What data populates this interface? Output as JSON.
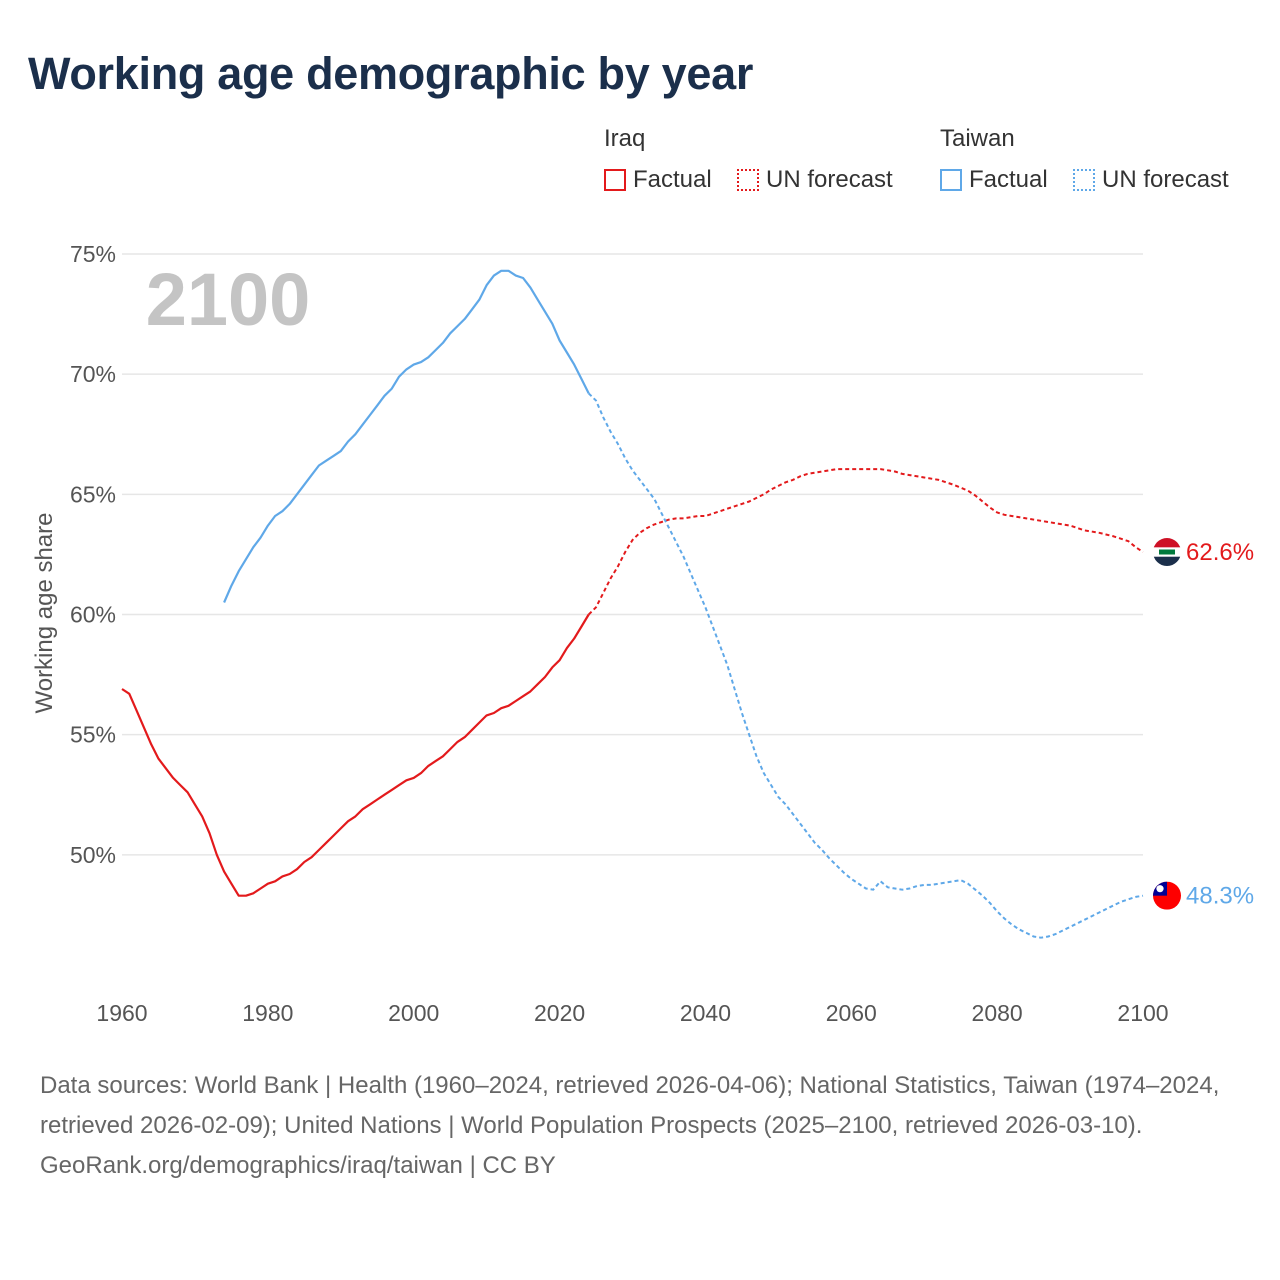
{
  "title": "Working age demographic by year",
  "legend": {
    "groups": [
      {
        "name": "Iraq",
        "factual": "Factual",
        "forecast": "UN forecast"
      },
      {
        "name": "Taiwan",
        "factual": "Factual",
        "forecast": "UN forecast"
      }
    ]
  },
  "footer": {
    "sources": "Data sources: World Bank | Health (1960–2024, retrieved 2026-04-06); National Statistics, Taiwan (1974–2024, retrieved 2026-02-09); United Nations | World Population Prospects (2025–2100, retrieved 2026-03-10).",
    "credit": "GeoRank.org/demographics/iraq/taiwan | CC BY"
  },
  "colors": {
    "iraq": "#e31a1c",
    "taiwan": "#5fa8e8",
    "title": "#1b2f4b",
    "grid": "#e6e6e6",
    "watermark": "#c4c4c4"
  },
  "chart_data": {
    "type": "line",
    "title": "Working age demographic by year",
    "xlabel": "",
    "ylabel": "Working age share",
    "year_watermark": "2100",
    "xlim": [
      1960,
      2100
    ],
    "ylim": [
      44.5,
      75
    ],
    "xticks": [
      {
        "value": 1960,
        "label": "1960"
      },
      {
        "value": 1980,
        "label": "1980"
      },
      {
        "value": 2000,
        "label": "2000"
      },
      {
        "value": 2020,
        "label": "2020"
      },
      {
        "value": 2040,
        "label": "2040"
      },
      {
        "value": 2060,
        "label": "2060"
      },
      {
        "value": 2080,
        "label": "2080"
      },
      {
        "value": 2100,
        "label": "2100"
      }
    ],
    "yticks": [
      {
        "value": 50,
        "label": "50%"
      },
      {
        "value": 55,
        "label": "55%"
      },
      {
        "value": 60,
        "label": "60%"
      },
      {
        "value": 65,
        "label": "65%"
      },
      {
        "value": 70,
        "label": "70%"
      },
      {
        "value": 75,
        "label": "75%"
      }
    ],
    "series": [
      {
        "name": "Iraq",
        "color_key": "iraq",
        "end_label": "62.6%",
        "end_value": 62.6,
        "factual": [
          [
            1960,
            56.9
          ],
          [
            1961,
            56.7
          ],
          [
            1962,
            56.0
          ],
          [
            1963,
            55.3
          ],
          [
            1964,
            54.6
          ],
          [
            1965,
            54.0
          ],
          [
            1966,
            53.6
          ],
          [
            1967,
            53.2
          ],
          [
            1968,
            52.9
          ],
          [
            1969,
            52.6
          ],
          [
            1970,
            52.1
          ],
          [
            1971,
            51.6
          ],
          [
            1972,
            50.9
          ],
          [
            1973,
            50.0
          ],
          [
            1974,
            49.3
          ],
          [
            1975,
            48.8
          ],
          [
            1976,
            48.3
          ],
          [
            1977,
            48.3
          ],
          [
            1978,
            48.4
          ],
          [
            1979,
            48.6
          ],
          [
            1980,
            48.8
          ],
          [
            1981,
            48.9
          ],
          [
            1982,
            49.1
          ],
          [
            1983,
            49.2
          ],
          [
            1984,
            49.4
          ],
          [
            1985,
            49.7
          ],
          [
            1986,
            49.9
          ],
          [
            1987,
            50.2
          ],
          [
            1988,
            50.5
          ],
          [
            1989,
            50.8
          ],
          [
            1990,
            51.1
          ],
          [
            1991,
            51.4
          ],
          [
            1992,
            51.6
          ],
          [
            1993,
            51.9
          ],
          [
            1994,
            52.1
          ],
          [
            1995,
            52.3
          ],
          [
            1996,
            52.5
          ],
          [
            1997,
            52.7
          ],
          [
            1998,
            52.9
          ],
          [
            1999,
            53.1
          ],
          [
            2000,
            53.2
          ],
          [
            2001,
            53.4
          ],
          [
            2002,
            53.7
          ],
          [
            2003,
            53.9
          ],
          [
            2004,
            54.1
          ],
          [
            2005,
            54.4
          ],
          [
            2006,
            54.7
          ],
          [
            2007,
            54.9
          ],
          [
            2008,
            55.2
          ],
          [
            2009,
            55.5
          ],
          [
            2010,
            55.8
          ],
          [
            2011,
            55.9
          ],
          [
            2012,
            56.1
          ],
          [
            2013,
            56.2
          ],
          [
            2014,
            56.4
          ],
          [
            2015,
            56.6
          ],
          [
            2016,
            56.8
          ],
          [
            2017,
            57.1
          ],
          [
            2018,
            57.4
          ],
          [
            2019,
            57.8
          ],
          [
            2020,
            58.1
          ],
          [
            2021,
            58.6
          ],
          [
            2022,
            59.0
          ],
          [
            2023,
            59.5
          ],
          [
            2024,
            60.0
          ]
        ],
        "forecast": [
          [
            2024,
            60.0
          ],
          [
            2025,
            60.3
          ],
          [
            2026,
            60.9
          ],
          [
            2027,
            61.5
          ],
          [
            2028,
            62.0
          ],
          [
            2029,
            62.6
          ],
          [
            2030,
            63.1
          ],
          [
            2031,
            63.4
          ],
          [
            2032,
            63.6
          ],
          [
            2033,
            63.75
          ],
          [
            2034,
            63.85
          ],
          [
            2035,
            63.95
          ],
          [
            2036,
            64.0
          ],
          [
            2037,
            64.0
          ],
          [
            2038,
            64.05
          ],
          [
            2039,
            64.1
          ],
          [
            2040,
            64.1
          ],
          [
            2041,
            64.2
          ],
          [
            2042,
            64.3
          ],
          [
            2043,
            64.4
          ],
          [
            2044,
            64.5
          ],
          [
            2045,
            64.6
          ],
          [
            2046,
            64.7
          ],
          [
            2047,
            64.85
          ],
          [
            2048,
            65.0
          ],
          [
            2049,
            65.2
          ],
          [
            2050,
            65.35
          ],
          [
            2051,
            65.5
          ],
          [
            2052,
            65.6
          ],
          [
            2053,
            65.75
          ],
          [
            2054,
            65.85
          ],
          [
            2055,
            65.9
          ],
          [
            2056,
            65.95
          ],
          [
            2057,
            66.0
          ],
          [
            2058,
            66.05
          ],
          [
            2059,
            66.05
          ],
          [
            2060,
            66.05
          ],
          [
            2062,
            66.05
          ],
          [
            2064,
            66.05
          ],
          [
            2065,
            66.0
          ],
          [
            2066,
            65.95
          ],
          [
            2067,
            65.85
          ],
          [
            2068,
            65.8
          ],
          [
            2070,
            65.7
          ],
          [
            2072,
            65.6
          ],
          [
            2074,
            65.4
          ],
          [
            2076,
            65.15
          ],
          [
            2077,
            64.95
          ],
          [
            2078,
            64.7
          ],
          [
            2079,
            64.45
          ],
          [
            2080,
            64.25
          ],
          [
            2081,
            64.15
          ],
          [
            2082,
            64.1
          ],
          [
            2084,
            64.0
          ],
          [
            2086,
            63.9
          ],
          [
            2088,
            63.8
          ],
          [
            2090,
            63.7
          ],
          [
            2092,
            63.5
          ],
          [
            2094,
            63.4
          ],
          [
            2096,
            63.25
          ],
          [
            2098,
            63.05
          ],
          [
            2099,
            62.8
          ],
          [
            2100,
            62.6
          ]
        ]
      },
      {
        "name": "Taiwan",
        "color_key": "taiwan",
        "end_label": "48.3%",
        "end_value": 48.3,
        "factual": [
          [
            1974,
            60.5
          ],
          [
            1975,
            61.2
          ],
          [
            1976,
            61.8
          ],
          [
            1977,
            62.3
          ],
          [
            1978,
            62.8
          ],
          [
            1979,
            63.2
          ],
          [
            1980,
            63.7
          ],
          [
            1981,
            64.1
          ],
          [
            1982,
            64.3
          ],
          [
            1983,
            64.6
          ],
          [
            1984,
            65.0
          ],
          [
            1985,
            65.4
          ],
          [
            1986,
            65.8
          ],
          [
            1987,
            66.2
          ],
          [
            1988,
            66.4
          ],
          [
            1989,
            66.6
          ],
          [
            1990,
            66.8
          ],
          [
            1991,
            67.2
          ],
          [
            1992,
            67.5
          ],
          [
            1993,
            67.9
          ],
          [
            1994,
            68.3
          ],
          [
            1995,
            68.7
          ],
          [
            1996,
            69.1
          ],
          [
            1997,
            69.4
          ],
          [
            1998,
            69.9
          ],
          [
            1999,
            70.2
          ],
          [
            2000,
            70.4
          ],
          [
            2001,
            70.5
          ],
          [
            2002,
            70.7
          ],
          [
            2003,
            71.0
          ],
          [
            2004,
            71.3
          ],
          [
            2005,
            71.7
          ],
          [
            2006,
            72.0
          ],
          [
            2007,
            72.3
          ],
          [
            2008,
            72.7
          ],
          [
            2009,
            73.1
          ],
          [
            2010,
            73.7
          ],
          [
            2011,
            74.1
          ],
          [
            2012,
            74.3
          ],
          [
            2013,
            74.3
          ],
          [
            2014,
            74.1
          ],
          [
            2015,
            74.0
          ],
          [
            2016,
            73.6
          ],
          [
            2017,
            73.1
          ],
          [
            2018,
            72.6
          ],
          [
            2019,
            72.1
          ],
          [
            2020,
            71.4
          ],
          [
            2021,
            70.9
          ],
          [
            2022,
            70.4
          ],
          [
            2023,
            69.8
          ],
          [
            2024,
            69.2
          ]
        ],
        "forecast": [
          [
            2024,
            69.2
          ],
          [
            2025,
            68.9
          ],
          [
            2026,
            68.2
          ],
          [
            2027,
            67.6
          ],
          [
            2028,
            67.1
          ],
          [
            2029,
            66.5
          ],
          [
            2030,
            66.0
          ],
          [
            2031,
            65.6
          ],
          [
            2032,
            65.2
          ],
          [
            2033,
            64.8
          ],
          [
            2034,
            64.2
          ],
          [
            2035,
            63.6
          ],
          [
            2036,
            63.0
          ],
          [
            2037,
            62.4
          ],
          [
            2038,
            61.7
          ],
          [
            2039,
            61.0
          ],
          [
            2040,
            60.3
          ],
          [
            2041,
            59.5
          ],
          [
            2042,
            58.7
          ],
          [
            2043,
            57.9
          ],
          [
            2044,
            56.9
          ],
          [
            2045,
            55.9
          ],
          [
            2046,
            55.0
          ],
          [
            2047,
            54.1
          ],
          [
            2048,
            53.4
          ],
          [
            2049,
            52.9
          ],
          [
            2050,
            52.4
          ],
          [
            2051,
            52.1
          ],
          [
            2052,
            51.7
          ],
          [
            2053,
            51.3
          ],
          [
            2054,
            50.9
          ],
          [
            2055,
            50.5
          ],
          [
            2056,
            50.2
          ],
          [
            2057,
            49.85
          ],
          [
            2058,
            49.55
          ],
          [
            2059,
            49.25
          ],
          [
            2060,
            49.0
          ],
          [
            2061,
            48.8
          ],
          [
            2062,
            48.6
          ],
          [
            2063,
            48.55
          ],
          [
            2064,
            48.9
          ],
          [
            2065,
            48.65
          ],
          [
            2066,
            48.6
          ],
          [
            2067,
            48.55
          ],
          [
            2068,
            48.6
          ],
          [
            2069,
            48.7
          ],
          [
            2070,
            48.75
          ],
          [
            2071,
            48.75
          ],
          [
            2072,
            48.8
          ],
          [
            2073,
            48.85
          ],
          [
            2074,
            48.9
          ],
          [
            2075,
            48.95
          ],
          [
            2076,
            48.8
          ],
          [
            2077,
            48.55
          ],
          [
            2078,
            48.3
          ],
          [
            2079,
            48.0
          ],
          [
            2080,
            47.65
          ],
          [
            2081,
            47.35
          ],
          [
            2082,
            47.1
          ],
          [
            2083,
            46.9
          ],
          [
            2084,
            46.75
          ],
          [
            2085,
            46.6
          ],
          [
            2086,
            46.55
          ],
          [
            2087,
            46.6
          ],
          [
            2088,
            46.7
          ],
          [
            2089,
            46.85
          ],
          [
            2090,
            47.0
          ],
          [
            2091,
            47.15
          ],
          [
            2092,
            47.3
          ],
          [
            2093,
            47.45
          ],
          [
            2094,
            47.6
          ],
          [
            2095,
            47.75
          ],
          [
            2096,
            47.9
          ],
          [
            2097,
            48.05
          ],
          [
            2098,
            48.15
          ],
          [
            2099,
            48.25
          ],
          [
            2100,
            48.3
          ]
        ]
      }
    ]
  }
}
